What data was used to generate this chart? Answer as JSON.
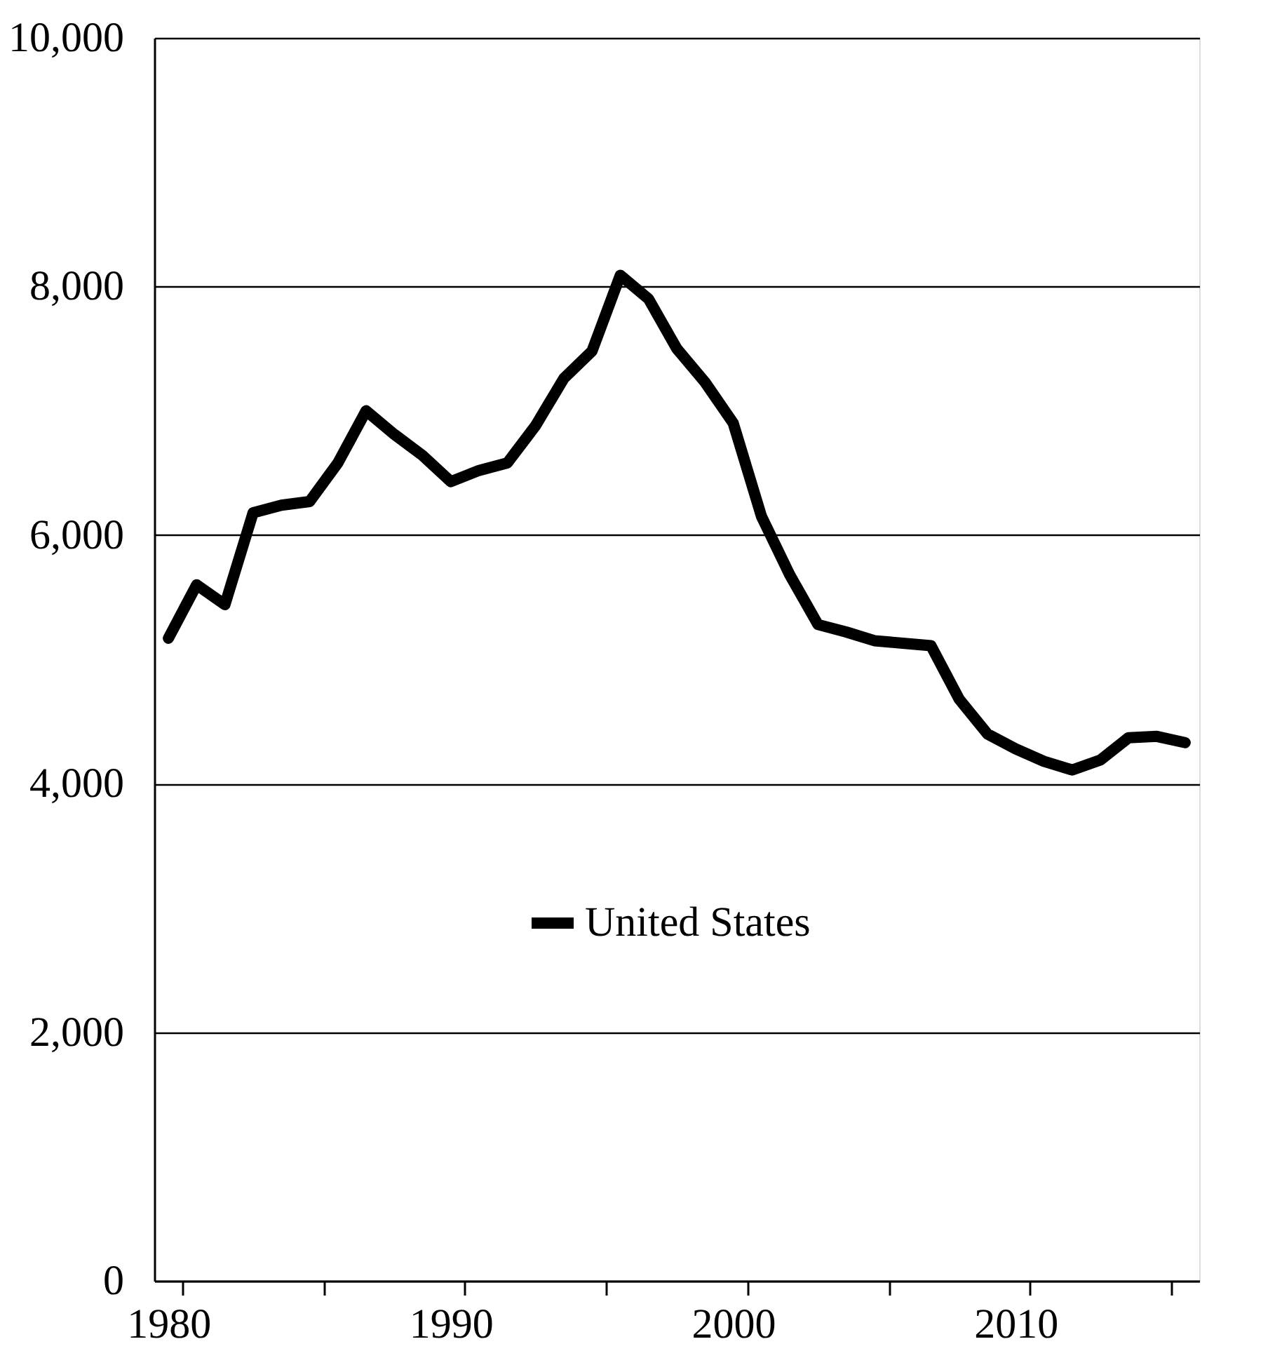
{
  "chart_data": {
    "type": "line",
    "categories": [
      "1980",
      null,
      null,
      null,
      null,
      null,
      null,
      null,
      null,
      null,
      "1990",
      null,
      null,
      null,
      null,
      null,
      null,
      null,
      null,
      null,
      "2000",
      null,
      null,
      null,
      null,
      null,
      null,
      null,
      null,
      null,
      "2010",
      null,
      null,
      null,
      null,
      null,
      null
    ],
    "series": [
      {
        "name": "United States",
        "color": "#000000",
        "values": [
          5170,
          5600,
          5440,
          6180,
          6240,
          6270,
          6580,
          7000,
          6810,
          6640,
          6430,
          6520,
          6580,
          6880,
          7260,
          7480,
          8090,
          7900,
          7500,
          7230,
          6900,
          6150,
          5680,
          5280,
          5220,
          5150,
          5130,
          5110,
          4680,
          4400,
          4280,
          4180,
          4110,
          4190,
          4370,
          4380,
          4330
        ]
      }
    ],
    "ylim": [
      0,
      10000
    ],
    "yticks": [
      0,
      {
        "value": 2000,
        "label": "2,000"
      },
      {
        "value": 4000,
        "label": "4,000"
      },
      {
        "value": 6000,
        "label": "6,000"
      },
      {
        "value": 8000,
        "label": "8,000"
      },
      {
        "value": 10000,
        "label": "10,000"
      }
    ],
    "grid": "y",
    "legend": "bottom",
    "line_style": "solid",
    "marker": "none"
  }
}
